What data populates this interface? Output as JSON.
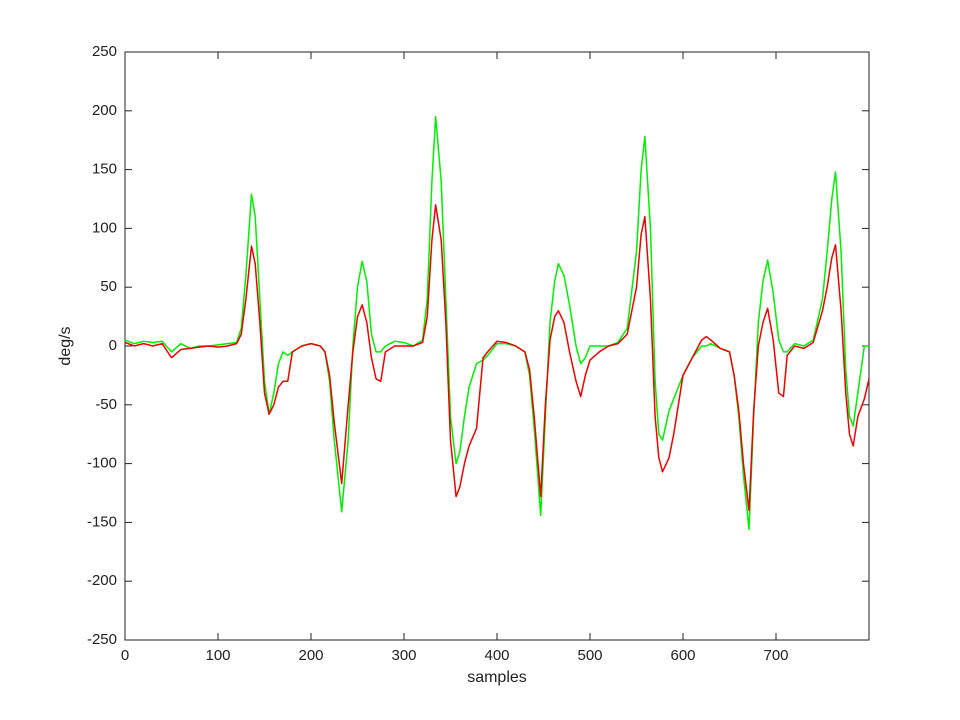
{
  "chart_data": {
    "type": "line",
    "x_label": "samples",
    "y_label": "deg/s",
    "xlim": [
      0,
      800
    ],
    "xticks": [
      0,
      100,
      200,
      300,
      400,
      500,
      600,
      700
    ],
    "ylim": [
      -250,
      250
    ],
    "yticks": [
      -250,
      -200,
      -150,
      -100,
      -50,
      0,
      50,
      100,
      150,
      200,
      250
    ],
    "x": [
      0,
      10,
      20,
      30,
      40,
      50,
      60,
      70,
      80,
      90,
      100,
      110,
      120,
      125,
      130,
      136,
      140,
      145,
      150,
      155,
      160,
      165,
      170,
      175,
      180,
      190,
      200,
      210,
      215,
      220,
      225,
      233,
      240,
      245,
      250,
      255,
      260,
      265,
      270,
      275,
      280,
      290,
      300,
      310,
      320,
      325,
      330,
      334,
      340,
      345,
      350,
      356,
      360,
      365,
      370,
      378,
      385,
      390,
      400,
      410,
      420,
      430,
      435,
      440,
      447,
      452,
      457,
      462,
      466,
      472,
      478,
      485,
      490,
      495,
      500,
      510,
      520,
      530,
      540,
      550,
      555,
      559,
      565,
      570,
      574,
      578,
      585,
      590,
      600,
      610,
      620,
      625,
      630,
      640,
      650,
      655,
      660,
      665,
      671,
      676,
      681,
      686,
      691,
      697,
      703,
      708,
      712,
      720,
      730,
      740,
      750,
      755,
      760,
      764,
      770,
      775,
      779,
      783,
      788,
      795,
      800
    ],
    "series": [
      {
        "color": "#00ee00",
        "values": [
          5,
          2,
          4,
          3,
          4,
          -5,
          2,
          -2,
          0,
          0,
          1,
          2,
          3,
          15,
          60,
          129,
          110,
          40,
          -30,
          -58,
          -40,
          -15,
          -5,
          -8,
          -5,
          0,
          2,
          0,
          -5,
          -30,
          -80,
          -141,
          -80,
          0,
          50,
          72,
          55,
          10,
          -5,
          -5,
          0,
          4,
          3,
          0,
          5,
          40,
          140,
          195,
          140,
          40,
          -60,
          -100,
          -90,
          -60,
          -35,
          -15,
          -12,
          -8,
          2,
          2,
          0,
          -5,
          -25,
          -70,
          -144,
          -60,
          20,
          55,
          70,
          60,
          35,
          0,
          -15,
          -10,
          0,
          0,
          0,
          3,
          15,
          80,
          150,
          178,
          100,
          -30,
          -75,
          -80,
          -55,
          -45,
          -25,
          -10,
          0,
          0,
          2,
          -2,
          -5,
          -25,
          -60,
          -110,
          -156,
          -60,
          20,
          55,
          73,
          45,
          5,
          -5,
          -5,
          2,
          0,
          5,
          40,
          80,
          125,
          148,
          80,
          -20,
          -60,
          -68,
          -40,
          0,
          0
        ]
      },
      {
        "color": "#ee0000",
        "values": [
          3,
          0,
          2,
          0,
          2,
          -10,
          -3,
          -2,
          -1,
          0,
          -1,
          0,
          2,
          10,
          40,
          85,
          70,
          20,
          -40,
          -58,
          -50,
          -35,
          -30,
          -30,
          -5,
          0,
          2,
          0,
          -5,
          -25,
          -65,
          -117,
          -50,
          -5,
          25,
          35,
          20,
          -10,
          -28,
          -30,
          -5,
          0,
          0,
          0,
          3,
          25,
          90,
          120,
          90,
          20,
          -80,
          -128,
          -120,
          -100,
          -85,
          -70,
          -10,
          -5,
          4,
          3,
          0,
          -5,
          -20,
          -60,
          -128,
          -50,
          5,
          25,
          30,
          20,
          -5,
          -30,
          -43,
          -25,
          -12,
          -5,
          0,
          2,
          10,
          50,
          95,
          110,
          40,
          -60,
          -95,
          -107,
          -95,
          -75,
          -25,
          -10,
          5,
          8,
          5,
          -2,
          -5,
          -25,
          -55,
          -100,
          -140,
          -55,
          0,
          20,
          32,
          5,
          -40,
          -43,
          -8,
          0,
          -2,
          3,
          30,
          50,
          75,
          86,
          30,
          -40,
          -75,
          -85,
          -60,
          -45,
          -28
        ]
      }
    ]
  }
}
